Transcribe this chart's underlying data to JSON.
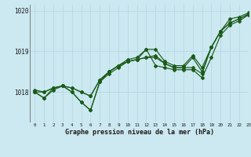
{
  "title": "Graphe pression niveau de la mer (hPa)",
  "background_color": "#cce8f0",
  "line_color": "#1a5c1a",
  "grid_color": "#b0d8e4",
  "xlim": [
    -0.5,
    23
  ],
  "ylim": [
    1017.25,
    1020.15
  ],
  "yticks": [
    1018,
    1019,
    1020
  ],
  "ytick_labels": [
    "1018",
    "1019",
    "1020"
  ],
  "xticks": [
    0,
    1,
    2,
    3,
    4,
    5,
    6,
    7,
    8,
    9,
    10,
    11,
    12,
    13,
    14,
    15,
    16,
    17,
    18,
    19,
    20,
    21,
    22,
    23
  ],
  "series1": [
    1018.0,
    1017.85,
    1018.1,
    1018.15,
    1018.0,
    1017.75,
    1017.55,
    1018.25,
    1018.5,
    1018.65,
    1018.8,
    1018.85,
    1019.05,
    1018.65,
    1018.6,
    1018.55,
    1018.55,
    1018.55,
    1018.35,
    1018.85,
    1019.4,
    1019.65,
    1019.75,
    1019.9
  ],
  "series2": [
    1018.0,
    1018.0,
    1018.1,
    1018.15,
    1018.1,
    1018.0,
    1017.9,
    1018.3,
    1018.5,
    1018.65,
    1018.75,
    1018.8,
    1018.85,
    1018.9,
    1018.7,
    1018.6,
    1018.6,
    1018.6,
    1018.45,
    1019.1,
    1019.5,
    1019.7,
    1019.8,
    1019.92
  ],
  "series3": [
    1018.0,
    1017.85,
    1018.05,
    1018.15,
    1018.0,
    1017.75,
    1017.55,
    1018.25,
    1018.45,
    1018.6,
    1018.75,
    1018.8,
    1019.05,
    1019.05,
    1018.75,
    1018.65,
    1018.65,
    1018.9,
    1018.6,
    1019.1,
    1019.5,
    1019.8,
    1019.85,
    1019.95
  ],
  "series4": [
    1018.05,
    1018.0,
    1018.1,
    1018.15,
    1018.1,
    1018.0,
    1017.9,
    1018.3,
    1018.5,
    1018.65,
    1018.75,
    1018.8,
    1018.85,
    1018.85,
    1018.7,
    1018.6,
    1018.6,
    1018.85,
    1018.5,
    1019.1,
    1019.5,
    1019.7,
    1019.8,
    1019.92
  ]
}
